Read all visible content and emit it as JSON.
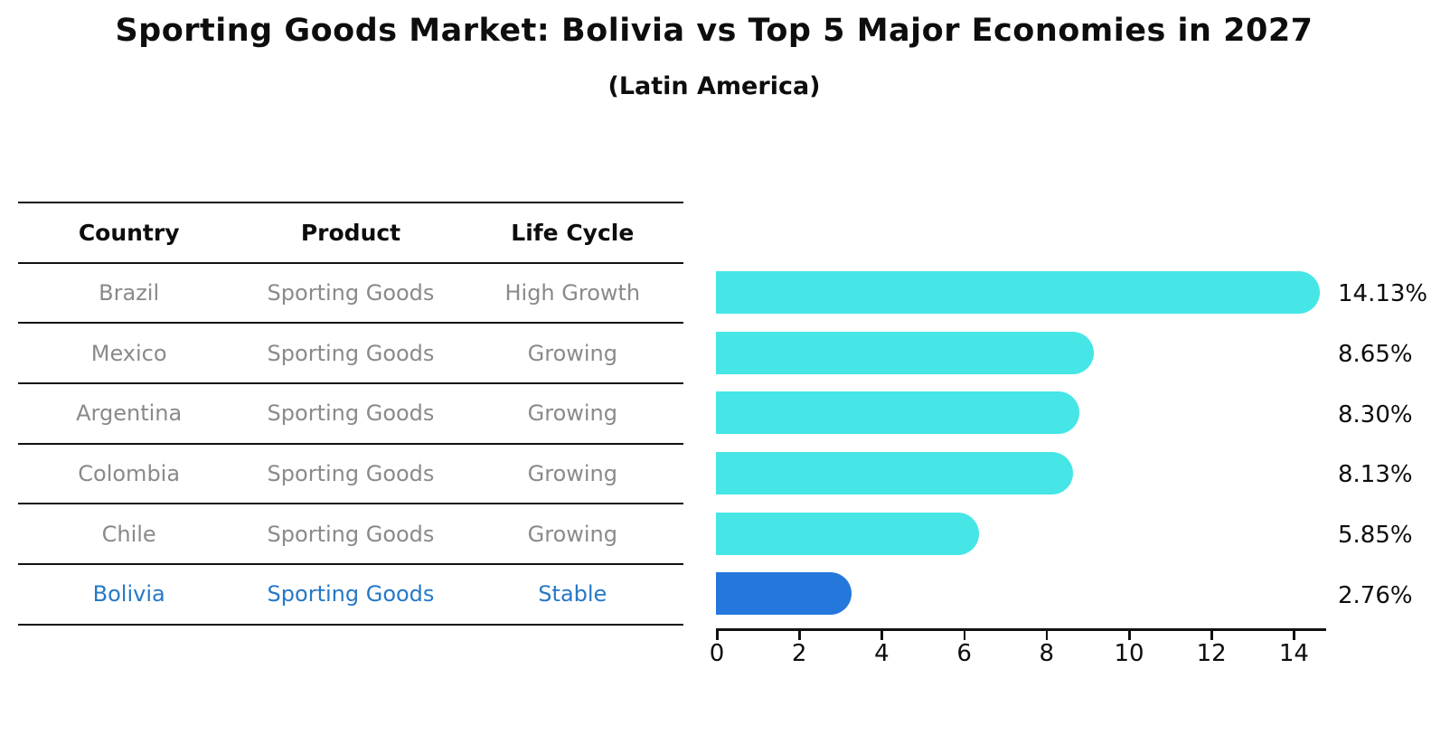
{
  "title": "Sporting Goods Market: Bolivia vs Top 5 Major Economies in 2027",
  "subtitle": "(Latin America)",
  "table": {
    "headers": [
      "Country",
      "Product",
      "Life Cycle"
    ],
    "rows": [
      {
        "country": "Brazil",
        "product": "Sporting Goods",
        "life_cycle": "High Growth",
        "highlight": false
      },
      {
        "country": "Mexico",
        "product": "Sporting Goods",
        "life_cycle": "Growing",
        "highlight": false
      },
      {
        "country": "Argentina",
        "product": "Sporting Goods",
        "life_cycle": "Growing",
        "highlight": false
      },
      {
        "country": "Colombia",
        "product": "Sporting Goods",
        "life_cycle": "Growing",
        "highlight": false
      },
      {
        "country": "Chile",
        "product": "Sporting Goods",
        "life_cycle": "Growing",
        "highlight": false
      },
      {
        "country": "Bolivia",
        "product": "Sporting Goods",
        "life_cycle": "Stable",
        "highlight": true
      }
    ]
  },
  "chart_data": {
    "type": "bar",
    "orientation": "horizontal",
    "title": "Sporting Goods Market: Bolivia vs Top 5 Major Economies in 2027",
    "subtitle": "(Latin America)",
    "categories": [
      "Brazil",
      "Mexico",
      "Argentina",
      "Colombia",
      "Chile",
      "Bolivia"
    ],
    "values": [
      14.13,
      8.65,
      8.3,
      8.13,
      5.85,
      2.76
    ],
    "value_labels": [
      "14.13%",
      "8.65%",
      "8.30%",
      "8.13%",
      "5.85%",
      "2.76%"
    ],
    "highlight_index": 5,
    "xlabel": "",
    "ylabel": "",
    "xlim": [
      0,
      15
    ],
    "xticks": [
      0,
      2,
      4,
      6,
      8,
      10,
      12,
      14
    ],
    "grid": false,
    "legend": false,
    "bar_color": "#46e5e6",
    "highlight_bar_color": "#2478dc",
    "highlight_text_color": "#2678c8"
  }
}
